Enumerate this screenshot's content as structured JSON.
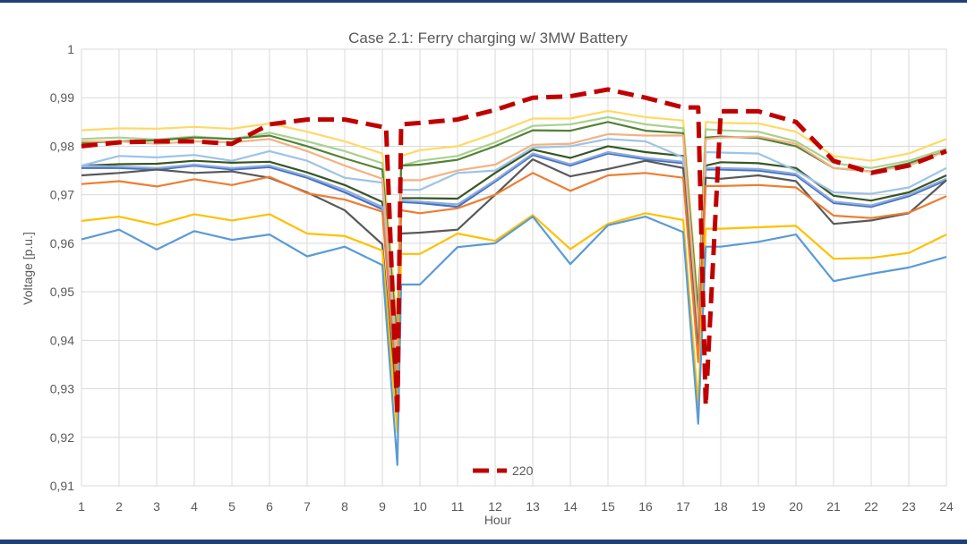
{
  "chart_data": {
    "type": "line",
    "title": "Case 2.1: Ferry charging w/ 3MW Battery",
    "xlabel": "Hour",
    "ylabel": "Voltage [p.u.]",
    "x_ticks": [
      "1",
      "2",
      "3",
      "4",
      "5",
      "6",
      "7",
      "8",
      "9",
      "10",
      "11",
      "12",
      "13",
      "14",
      "15",
      "16",
      "17",
      "18",
      "19",
      "20",
      "21",
      "22",
      "23",
      "24"
    ],
    "y_ticks": [
      "0,91",
      "0,92",
      "0,93",
      "0,94",
      "0,95",
      "0,96",
      "0,97",
      "0,98",
      "0,99",
      "1"
    ],
    "ylim": [
      0.91,
      1.0
    ],
    "xlim": [
      1,
      24
    ],
    "grid": true,
    "legend": {
      "position": "bottom",
      "entries": [
        "220"
      ]
    },
    "ferry_charging_hours": [
      9.5,
      17.5
    ],
    "series": [
      {
        "name": "220",
        "color": "#c00000",
        "dashed": true,
        "emphasized": true,
        "x": [
          1,
          2,
          3,
          4,
          5,
          6,
          7,
          8,
          9,
          9.1,
          9.4,
          9.5,
          10,
          11,
          12,
          13,
          14,
          15,
          16,
          17,
          17.4,
          17.6,
          18,
          19,
          20,
          21,
          22,
          23,
          24
        ],
        "y": [
          0.98,
          0.9808,
          0.981,
          0.981,
          0.9805,
          0.9845,
          0.9855,
          0.9855,
          0.984,
          0.984,
          0.9245,
          0.9845,
          0.9848,
          0.9855,
          0.9875,
          0.99,
          0.9903,
          0.9917,
          0.99,
          0.988,
          0.988,
          0.9265,
          0.9872,
          0.9872,
          0.985,
          0.977,
          0.9745,
          0.976,
          0.979
        ]
      },
      {
        "color": "#ffd966",
        "x": [
          1,
          2,
          3,
          4,
          5,
          6,
          7,
          8,
          9,
          9.4,
          9.5,
          10,
          11,
          12,
          13,
          14,
          15,
          16,
          17,
          17.4,
          17.6,
          18,
          19,
          20,
          21,
          22,
          23,
          24
        ],
        "y": [
          0.9833,
          0.9837,
          0.9836,
          0.984,
          0.9836,
          0.9847,
          0.983,
          0.981,
          0.9785,
          0.943,
          0.978,
          0.9792,
          0.98,
          0.9827,
          0.9857,
          0.9857,
          0.9873,
          0.986,
          0.9853,
          0.9473,
          0.985,
          0.9848,
          0.9847,
          0.983,
          0.978,
          0.977,
          0.9785,
          0.9815
        ]
      },
      {
        "color": "#a9d18e",
        "x": [
          1,
          2,
          3,
          4,
          5,
          6,
          7,
          8,
          9,
          9.4,
          9.5,
          10,
          11,
          12,
          13,
          14,
          15,
          16,
          17,
          17.4,
          17.6,
          18,
          19,
          20,
          21,
          22,
          23,
          24
        ],
        "y": [
          0.9815,
          0.9818,
          0.9814,
          0.982,
          0.9815,
          0.9828,
          0.981,
          0.979,
          0.9765,
          0.9405,
          0.976,
          0.977,
          0.978,
          0.9808,
          0.9842,
          0.9845,
          0.986,
          0.9845,
          0.9837,
          0.9465,
          0.9835,
          0.9833,
          0.983,
          0.981,
          0.9765,
          0.9755,
          0.977,
          0.9795
        ]
      },
      {
        "color": "#548235",
        "x": [
          1,
          2,
          3,
          4,
          5,
          6,
          7,
          8,
          9,
          9.4,
          9.5,
          10,
          11,
          12,
          13,
          14,
          15,
          16,
          17,
          17.4,
          17.6,
          18,
          19,
          20,
          21,
          22,
          23,
          24
        ],
        "y": [
          0.9807,
          0.981,
          0.9812,
          0.9818,
          0.9815,
          0.9822,
          0.98,
          0.9775,
          0.9752,
          0.9395,
          0.976,
          0.9762,
          0.9772,
          0.98,
          0.9833,
          0.9832,
          0.985,
          0.9832,
          0.9827,
          0.9455,
          0.9818,
          0.982,
          0.9817,
          0.98,
          0.9755,
          0.9748,
          0.9765,
          0.979
        ]
      },
      {
        "color": "#375623",
        "x": [
          1,
          2,
          3,
          4,
          5,
          6,
          7,
          8,
          9,
          9.4,
          9.5,
          10,
          11,
          12,
          13,
          14,
          15,
          16,
          17,
          17.4,
          17.6,
          18,
          19,
          20,
          21,
          22,
          23,
          24
        ],
        "y": [
          0.976,
          0.9763,
          0.9764,
          0.977,
          0.9766,
          0.9768,
          0.9746,
          0.972,
          0.9685,
          0.9325,
          0.9693,
          0.9693,
          0.9692,
          0.9745,
          0.9793,
          0.9776,
          0.98,
          0.9788,
          0.978,
          0.9395,
          0.976,
          0.9767,
          0.9765,
          0.9755,
          0.9698,
          0.9688,
          0.9705,
          0.974
        ]
      },
      {
        "color": "#4472c4",
        "x": [
          1,
          2,
          3,
          4,
          5,
          6,
          7,
          8,
          9,
          9.4,
          9.5,
          10,
          11,
          12,
          13,
          14,
          15,
          16,
          17,
          17.4,
          17.6,
          18,
          19,
          20,
          21,
          22,
          23,
          24
        ],
        "y": [
          0.9755,
          0.9755,
          0.9752,
          0.976,
          0.9752,
          0.9757,
          0.9735,
          0.9705,
          0.967,
          0.932,
          0.9685,
          0.9683,
          0.9675,
          0.9727,
          0.9782,
          0.976,
          0.9785,
          0.9773,
          0.9765,
          0.9385,
          0.9752,
          0.9752,
          0.975,
          0.974,
          0.9683,
          0.9675,
          0.9697,
          0.973
        ]
      },
      {
        "color": "#8faadc",
        "x": [
          1,
          2,
          3,
          4,
          5,
          6,
          7,
          8,
          9,
          9.4,
          9.5,
          10,
          11,
          12,
          13,
          14,
          15,
          16,
          17,
          17.4,
          17.6,
          18,
          19,
          20,
          21,
          22,
          23,
          24
        ],
        "y": [
          0.976,
          0.9758,
          0.9755,
          0.9762,
          0.9755,
          0.976,
          0.9738,
          0.971,
          0.9675,
          0.9328,
          0.9688,
          0.9686,
          0.968,
          0.973,
          0.9785,
          0.9763,
          0.9788,
          0.9776,
          0.9768,
          0.939,
          0.9755,
          0.9755,
          0.9753,
          0.9743,
          0.9686,
          0.9678,
          0.97,
          0.9733
        ]
      },
      {
        "color": "#9dc3e6",
        "x": [
          1,
          2,
          3,
          4,
          5,
          6,
          7,
          8,
          9,
          9.4,
          9.5,
          10,
          11,
          12,
          13,
          14,
          15,
          16,
          17,
          17.4,
          17.6,
          18,
          19,
          20,
          21,
          22,
          23,
          24
        ],
        "y": [
          0.976,
          0.978,
          0.9777,
          0.9782,
          0.977,
          0.979,
          0.977,
          0.9735,
          0.9725,
          0.934,
          0.971,
          0.971,
          0.9745,
          0.975,
          0.9797,
          0.98,
          0.9815,
          0.981,
          0.9777,
          0.9395,
          0.9788,
          0.9787,
          0.9785,
          0.975,
          0.9705,
          0.9702,
          0.9715,
          0.9755
        ]
      },
      {
        "color": "#f4b183",
        "x": [
          1,
          2,
          3,
          4,
          5,
          6,
          7,
          8,
          9,
          9.4,
          9.5,
          10,
          11,
          12,
          13,
          14,
          15,
          16,
          17,
          17.4,
          17.6,
          18,
          19,
          20,
          21,
          22,
          23,
          24
        ],
        "y": [
          0.981,
          0.981,
          0.9805,
          0.981,
          0.9808,
          0.9815,
          0.979,
          0.976,
          0.9733,
          0.9365,
          0.973,
          0.973,
          0.975,
          0.9762,
          0.9803,
          0.9805,
          0.9825,
          0.9822,
          0.9822,
          0.9425,
          0.9815,
          0.9818,
          0.982,
          0.9805,
          0.9755,
          0.9748,
          0.976,
          0.979
        ]
      },
      {
        "color": "#595959",
        "x": [
          1,
          2,
          3,
          4,
          5,
          6,
          7,
          8,
          9,
          9.4,
          9.5,
          10,
          11,
          12,
          13,
          14,
          15,
          16,
          17,
          17.4,
          17.6,
          18,
          19,
          20,
          21,
          22,
          23,
          24
        ],
        "y": [
          0.974,
          0.9745,
          0.9752,
          0.9745,
          0.9748,
          0.9735,
          0.9705,
          0.9668,
          0.9598,
          0.925,
          0.962,
          0.9622,
          0.9628,
          0.97,
          0.9773,
          0.9738,
          0.9753,
          0.977,
          0.9755,
          0.9375,
          0.9735,
          0.9733,
          0.974,
          0.9728,
          0.964,
          0.9647,
          0.9662,
          0.973
        ]
      },
      {
        "color": "#ed7d31",
        "x": [
          1,
          2,
          3,
          4,
          5,
          6,
          7,
          8,
          9,
          9.4,
          9.5,
          10,
          11,
          12,
          13,
          14,
          15,
          16,
          17,
          17.4,
          17.6,
          18,
          19,
          20,
          21,
          22,
          23,
          24
        ],
        "y": [
          0.9722,
          0.9728,
          0.9717,
          0.9732,
          0.972,
          0.9737,
          0.9703,
          0.969,
          0.9665,
          0.9288,
          0.9668,
          0.9662,
          0.9672,
          0.97,
          0.9745,
          0.9708,
          0.974,
          0.9745,
          0.9735,
          0.9355,
          0.9718,
          0.9718,
          0.972,
          0.9715,
          0.9657,
          0.9652,
          0.9663,
          0.9697
        ]
      },
      {
        "color": "#ffc000",
        "x": [
          1,
          2,
          3,
          4,
          5,
          6,
          7,
          8,
          9,
          9.4,
          9.5,
          10,
          11,
          12,
          13,
          14,
          15,
          16,
          17,
          17.4,
          17.6,
          18,
          19,
          20,
          21,
          22,
          23,
          24
        ],
        "y": [
          0.9646,
          0.9655,
          0.9638,
          0.966,
          0.9647,
          0.966,
          0.962,
          0.9615,
          0.9585,
          0.921,
          0.9578,
          0.9578,
          0.962,
          0.9605,
          0.9658,
          0.9588,
          0.964,
          0.9662,
          0.9648,
          0.9268,
          0.963,
          0.963,
          0.9633,
          0.9636,
          0.9568,
          0.957,
          0.958,
          0.9618
        ]
      },
      {
        "color": "#5b9bd5",
        "x": [
          1,
          2,
          3,
          4,
          5,
          6,
          7,
          8,
          9,
          9.4,
          9.5,
          10,
          11,
          12,
          13,
          14,
          15,
          16,
          17,
          17.4,
          17.6,
          18,
          19,
          20,
          21,
          22,
          23,
          24
        ],
        "y": [
          0.9608,
          0.9628,
          0.9587,
          0.9625,
          0.9607,
          0.9618,
          0.9573,
          0.9593,
          0.9555,
          0.9143,
          0.9515,
          0.9515,
          0.9592,
          0.96,
          0.9655,
          0.9557,
          0.9637,
          0.9655,
          0.9623,
          0.9228,
          0.9593,
          0.9593,
          0.9603,
          0.9618,
          0.9522,
          0.9537,
          0.955,
          0.9572
        ]
      }
    ]
  }
}
